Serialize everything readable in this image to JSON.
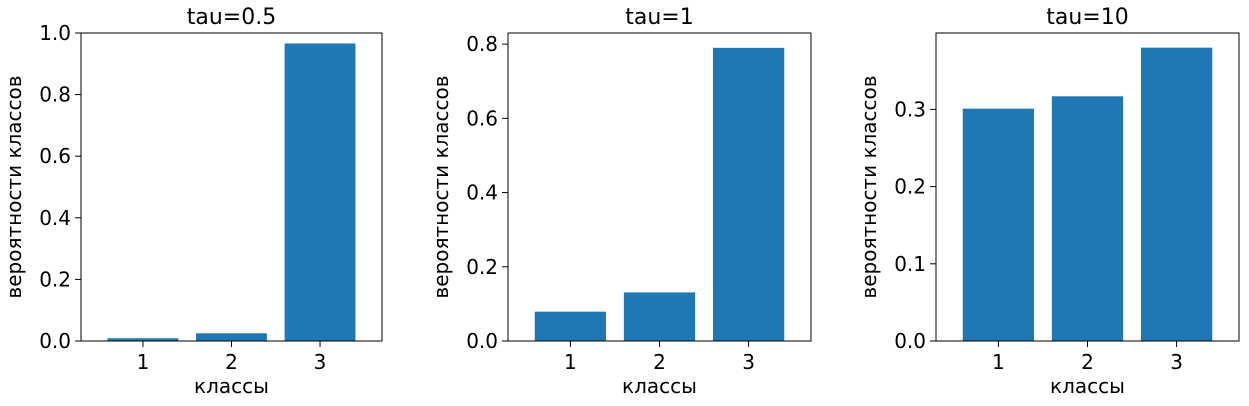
{
  "chart_data": [
    {
      "type": "bar",
      "title": "tau=0.5",
      "xlabel": "классы",
      "ylabel": "вероятности классов",
      "categories": [
        "1",
        "2",
        "3"
      ],
      "values": [
        0.009,
        0.025,
        0.966
      ],
      "ylim": [
        0,
        1.0
      ],
      "yticks": [
        0.0,
        0.2,
        0.4,
        0.6,
        0.8,
        1.0
      ],
      "ytick_labels": [
        "0.0",
        "0.2",
        "0.4",
        "0.6",
        "0.8",
        "1.0"
      ],
      "color": "#1f77b4",
      "grid": false
    },
    {
      "type": "bar",
      "title": "tau=1",
      "xlabel": "классы",
      "ylabel": "вероятности классов",
      "categories": [
        "1",
        "2",
        "3"
      ],
      "values": [
        0.079,
        0.131,
        0.79
      ],
      "ylim": [
        0,
        0.83
      ],
      "yticks": [
        0.0,
        0.2,
        0.4,
        0.6,
        0.8
      ],
      "ytick_labels": [
        "0.0",
        "0.2",
        "0.4",
        "0.6",
        "0.8"
      ],
      "color": "#1f77b4",
      "grid": false
    },
    {
      "type": "bar",
      "title": "tau=10",
      "xlabel": "классы",
      "ylabel": "вероятности классов",
      "categories": [
        "1",
        "2",
        "3"
      ],
      "values": [
        0.301,
        0.317,
        0.38
      ],
      "ylim": [
        0,
        0.399
      ],
      "yticks": [
        0.0,
        0.1,
        0.2,
        0.3
      ],
      "ytick_labels": [
        "0.0",
        "0.1",
        "0.2",
        "0.3"
      ],
      "color": "#1f77b4",
      "grid": false
    }
  ]
}
